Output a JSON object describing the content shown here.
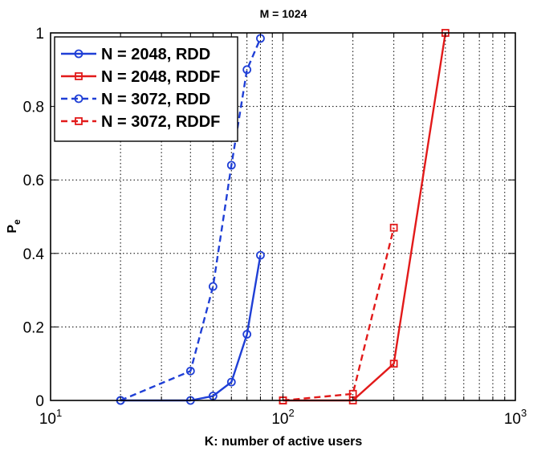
{
  "chart_data": {
    "type": "line",
    "title": "M = 1024",
    "xlabel": "K: number of active users",
    "ylabel": "P",
    "ylabel_subscript": "e",
    "xscale": "log",
    "xlim": [
      10,
      1000
    ],
    "ylim": [
      0,
      1
    ],
    "grid": true,
    "legend_position": "top-left",
    "x_ticks": [
      {
        "base": "10",
        "exp": "1"
      },
      {
        "base": "10",
        "exp": "2"
      },
      {
        "base": "10",
        "exp": "3"
      }
    ],
    "y_ticks": [
      "0",
      "0.2",
      "0.4",
      "0.6",
      "0.8",
      "1"
    ],
    "series": [
      {
        "name": "N = 2048, RDD",
        "color": "#1f3fd6",
        "line": "solid",
        "marker": "circle",
        "x": [
          20,
          40,
          50,
          60,
          70,
          80
        ],
        "y": [
          0.0,
          0.0,
          0.012,
          0.05,
          0.18,
          0.395
        ]
      },
      {
        "name": "N = 2048, RDDF",
        "color": "#e21a1a",
        "line": "solid",
        "marker": "square",
        "x": [
          100,
          200,
          300,
          500
        ],
        "y": [
          0.0,
          0.0,
          0.1,
          1.0
        ]
      },
      {
        "name": "N = 3072, RDD",
        "color": "#1f3fd6",
        "line": "dashed",
        "marker": "circle",
        "x": [
          20,
          40,
          50,
          60,
          70,
          80
        ],
        "y": [
          0.0,
          0.08,
          0.31,
          0.64,
          0.9,
          0.985
        ]
      },
      {
        "name": "N = 3072, RDDF",
        "color": "#e21a1a",
        "line": "dashed",
        "marker": "square",
        "x": [
          100,
          200,
          300
        ],
        "y": [
          0.0,
          0.018,
          0.47
        ]
      }
    ]
  }
}
